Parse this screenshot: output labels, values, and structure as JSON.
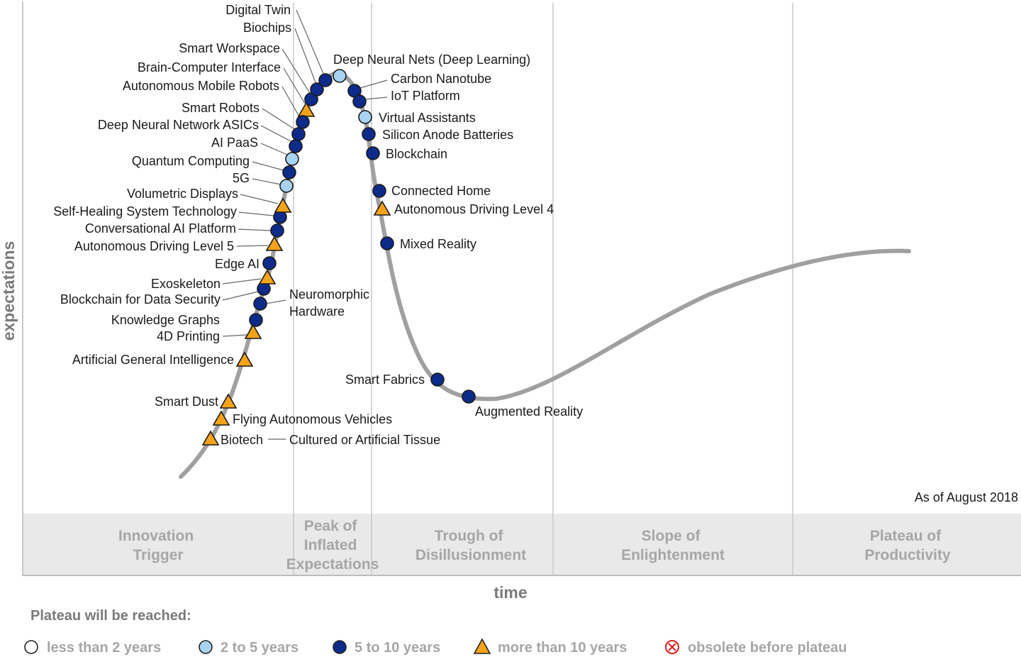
{
  "chart_data": {
    "type": "scatter",
    "title": "",
    "xlabel": "time",
    "ylabel": "expectations",
    "note": "As of August 2018",
    "phases": [
      {
        "name": "Innovation Trigger",
        "lines": [
          "Innovation",
          "Trigger"
        ]
      },
      {
        "name": "Peak of Inflated Expectations",
        "lines": [
          "Peak of",
          "Inflated",
          "Expectations"
        ]
      },
      {
        "name": "Trough of Disillusionment",
        "lines": [
          "Trough of",
          "Disillusionment"
        ]
      },
      {
        "name": "Slope of Enlightenment",
        "lines": [
          "Slope of",
          "Enlightenment"
        ]
      },
      {
        "name": "Plateau of Productivity",
        "lines": [
          "Plateau of",
          "Productivity"
        ]
      }
    ],
    "legend": {
      "title": "Plateau will be reached:",
      "items": [
        {
          "key": "lt2",
          "label": "less than 2 years",
          "symbol": "circle",
          "color": "#ffffff"
        },
        {
          "key": "2to5",
          "label": "2 to 5 years",
          "symbol": "circle",
          "color": "#a9d3f2"
        },
        {
          "key": "5to10",
          "label": "5 to 10 years",
          "symbol": "circle",
          "color": "#0d2b8a"
        },
        {
          "key": "gt10",
          "label": "more than 10 years",
          "symbol": "triangle",
          "color": "#f5a31a"
        },
        {
          "key": "obsolete",
          "label": "obsolete before plateau",
          "symbol": "obsolete",
          "color": "#e02020"
        }
      ]
    },
    "technologies": [
      {
        "name": "Biotech — Cultured or Artificial Tissue",
        "plateau": "gt10"
      },
      {
        "name": "Flying Autonomous Vehicles",
        "plateau": "gt10"
      },
      {
        "name": "Smart Dust",
        "plateau": "gt10"
      },
      {
        "name": "Artificial General Intelligence",
        "plateau": "gt10"
      },
      {
        "name": "4D Printing",
        "plateau": "gt10"
      },
      {
        "name": "Knowledge Graphs",
        "plateau": "5to10"
      },
      {
        "name": "Neuromorphic Hardware",
        "plateau": "5to10"
      },
      {
        "name": "Blockchain for Data Security",
        "plateau": "5to10"
      },
      {
        "name": "Exoskeleton",
        "plateau": "gt10"
      },
      {
        "name": "Edge AI",
        "plateau": "5to10"
      },
      {
        "name": "Autonomous Driving Level 5",
        "plateau": "gt10"
      },
      {
        "name": "Conversational AI Platform",
        "plateau": "5to10"
      },
      {
        "name": "Self-Healing System Technology",
        "plateau": "5to10"
      },
      {
        "name": "Volumetric Displays",
        "plateau": "gt10"
      },
      {
        "name": "5G",
        "plateau": "2to5"
      },
      {
        "name": "Quantum Computing",
        "plateau": "5to10"
      },
      {
        "name": "AI PaaS",
        "plateau": "2to5"
      },
      {
        "name": "Deep Neural Network ASICs",
        "plateau": "5to10"
      },
      {
        "name": "Smart Robots",
        "plateau": "5to10"
      },
      {
        "name": "Brain-Computer Interface",
        "plateau": "gt10"
      },
      {
        "name": "Autonomous Mobile Robots",
        "plateau": "5to10"
      },
      {
        "name": "Smart Workspace",
        "plateau": "5to10"
      },
      {
        "name": "Biochips",
        "plateau": "5to10"
      },
      {
        "name": "Digital Twin",
        "plateau": "5to10"
      },
      {
        "name": "Deep Neural Nets (Deep Learning)",
        "plateau": "2to5"
      },
      {
        "name": "Carbon Nanotube",
        "plateau": "5to10"
      },
      {
        "name": "IoT Platform",
        "plateau": "5to10"
      },
      {
        "name": "Virtual Assistants",
        "plateau": "2to5"
      },
      {
        "name": "Silicon Anode Batteries",
        "plateau": "5to10"
      },
      {
        "name": "Blockchain",
        "plateau": "5to10"
      },
      {
        "name": "Connected Home",
        "plateau": "5to10"
      },
      {
        "name": "Autonomous Driving Level 4",
        "plateau": "gt10"
      },
      {
        "name": "Mixed Reality",
        "plateau": "5to10"
      },
      {
        "name": "Smart Fabrics",
        "plateau": "5to10"
      },
      {
        "name": "Augmented Reality",
        "plateau": "5to10"
      }
    ]
  }
}
